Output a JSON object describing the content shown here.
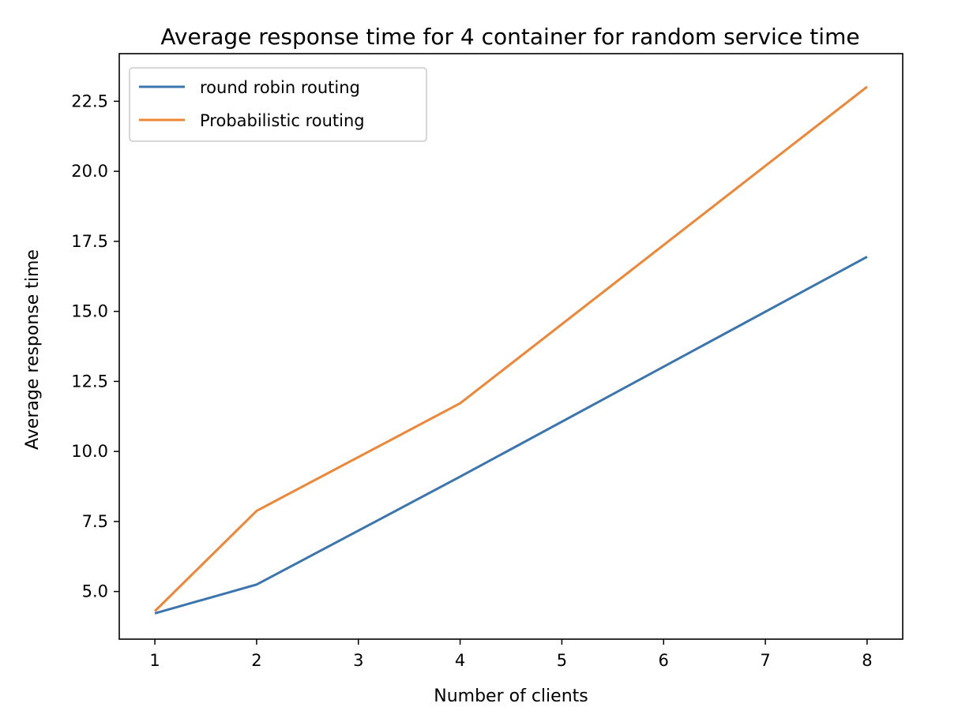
{
  "chart_data": {
    "type": "line",
    "title": "Average response time for 4 container for random service time",
    "xlabel": "Number of clients",
    "ylabel": "Average response time",
    "x": [
      1,
      2,
      4,
      8
    ],
    "xlim": [
      0.65,
      8.35
    ],
    "ylim": [
      3.3,
      24.2
    ],
    "xticks": [
      1,
      2,
      3,
      4,
      5,
      6,
      7,
      8
    ],
    "yticks": [
      5.0,
      7.5,
      10.0,
      12.5,
      15.0,
      17.5,
      20.0,
      22.5
    ],
    "xtick_labels": [
      "1",
      "2",
      "3",
      "4",
      "5",
      "6",
      "7",
      "8"
    ],
    "ytick_labels": [
      "5.0",
      "7.5",
      "10.0",
      "12.5",
      "15.0",
      "17.5",
      "20.0",
      "22.5"
    ],
    "grid": false,
    "legend_location": "upper-left",
    "series": [
      {
        "name": "round robin routing",
        "color": "#3b75af",
        "values": [
          4.22,
          5.25,
          9.1,
          16.95
        ]
      },
      {
        "name": "Probabilistic routing",
        "color": "#ef8636",
        "values": [
          4.3,
          7.88,
          11.72,
          23.02
        ]
      }
    ]
  }
}
